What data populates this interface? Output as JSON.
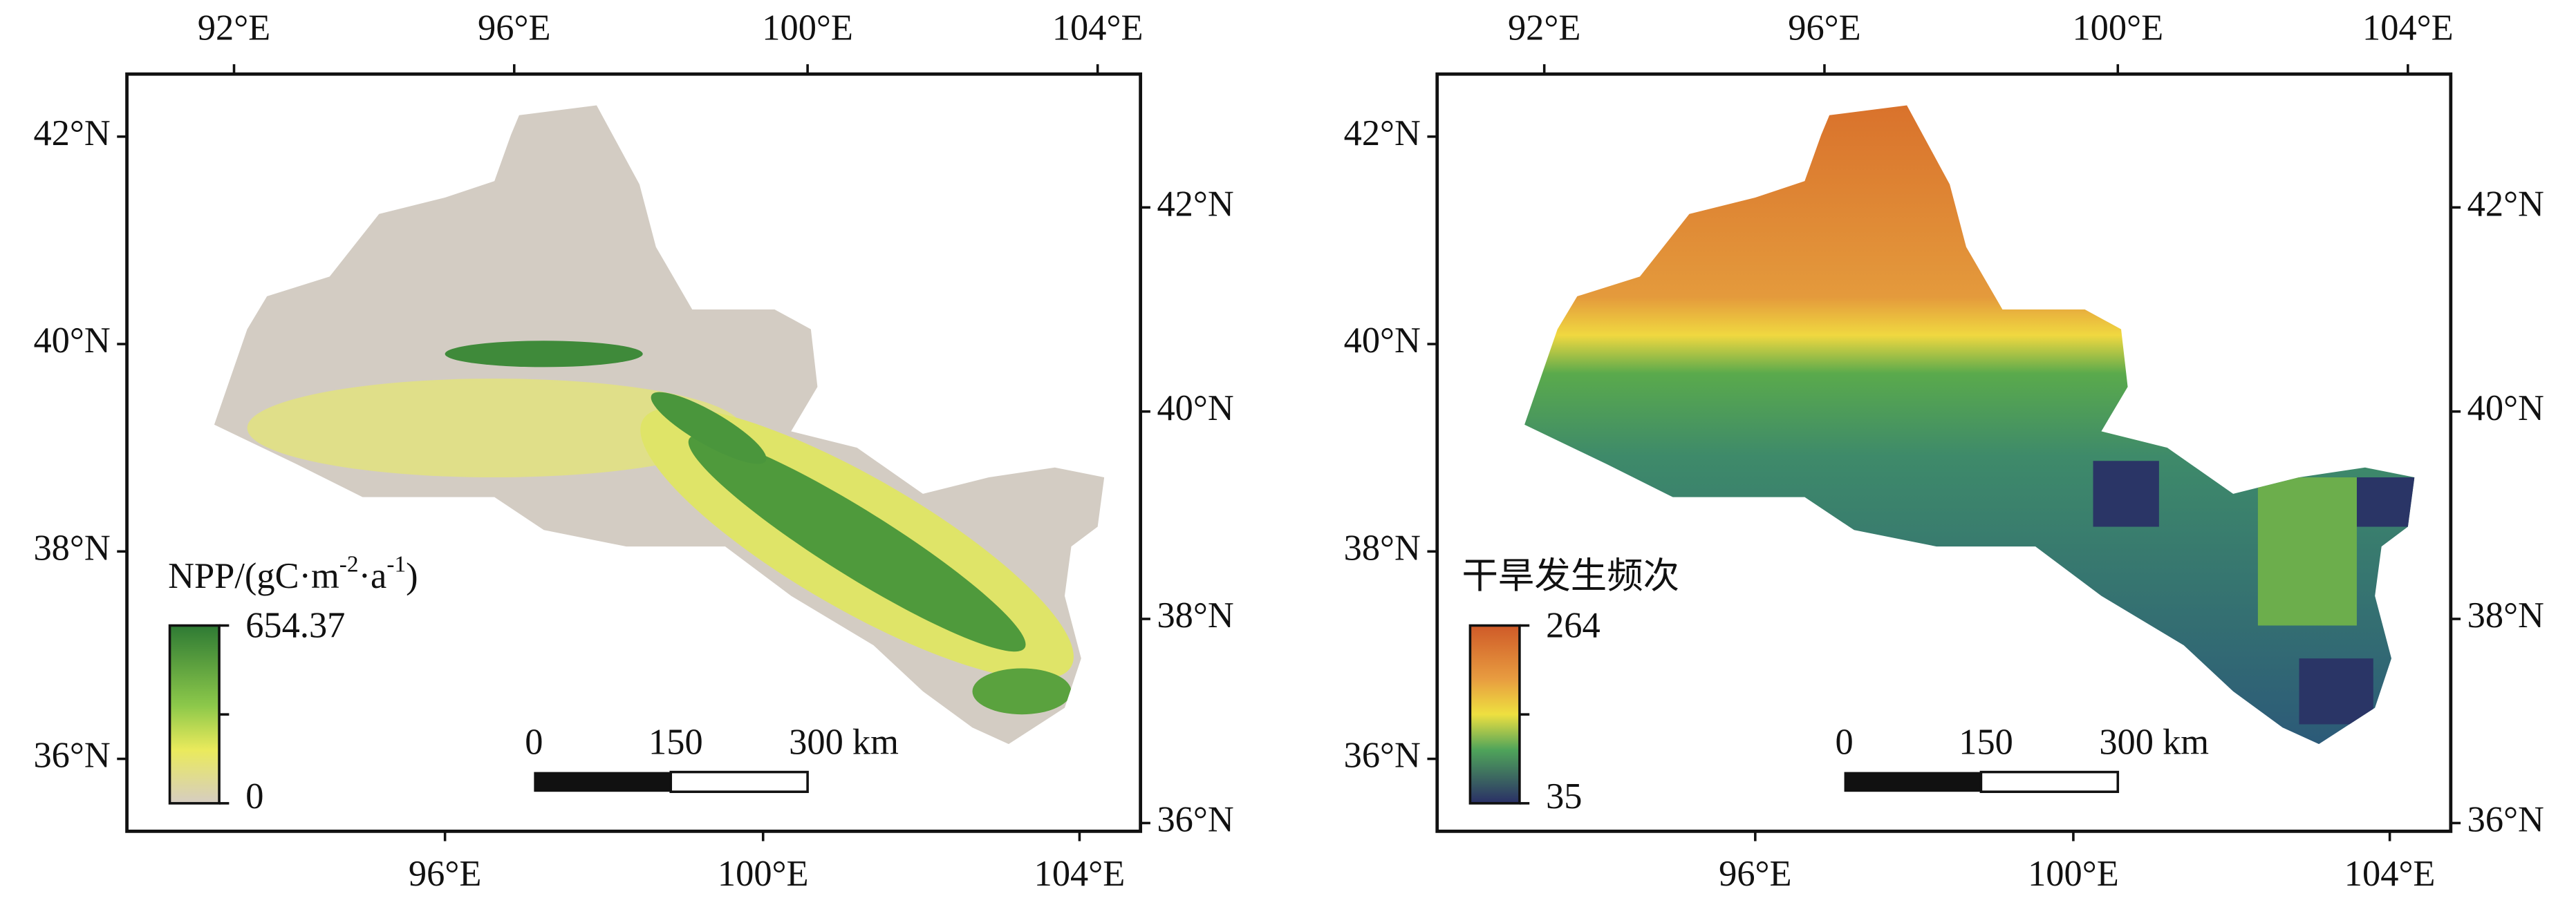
{
  "panels": [
    {
      "top_ticks": [
        "92°E",
        "96°E",
        "100°E",
        "104°E"
      ],
      "bottom_ticks": [
        "96°E",
        "100°E",
        "104°E"
      ],
      "left_ticks": [
        "42°N",
        "40°N",
        "38°N",
        "36°N"
      ],
      "right_ticks": [
        "42°N",
        "40°N",
        "38°N",
        "36°N"
      ],
      "legend": {
        "title": [
          "NPP/(gC·m",
          "-2",
          "·a",
          "-1",
          ")"
        ],
        "max": 654.37,
        "min": 0
      },
      "scale_bar": [
        0,
        150,
        "300 km"
      ]
    },
    {
      "top_ticks": [
        "92°E",
        "96°E",
        "100°E",
        "104°E"
      ],
      "bottom_ticks": [
        "96°E",
        "100°E",
        "104°E"
      ],
      "left_ticks": [
        "42°N",
        "40°N",
        "38°N",
        "36°N"
      ],
      "right_ticks": [
        "42°N",
        "40°N",
        "38°N",
        "36°N"
      ],
      "legend": {
        "title": [
          "干旱发生频次"
        ],
        "max": 264,
        "min": 35
      },
      "scale_bar": [
        0,
        150,
        "300 km"
      ]
    }
  ]
}
